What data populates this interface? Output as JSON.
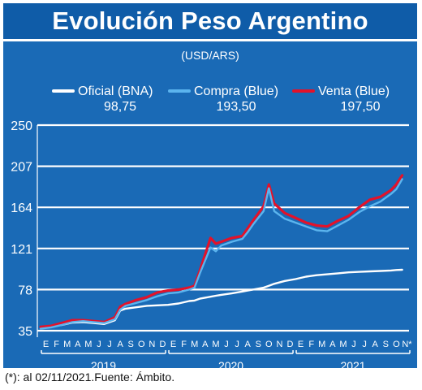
{
  "header": {
    "title": "Evolución Peso Argentino"
  },
  "footnote": "(*): al 02/11/2021.Fuente: Ámbito.",
  "colors": {
    "background": "#1a6ab6",
    "oficial": "#ffffff",
    "compra": "#5bb4ee",
    "venta": "#e3122a",
    "grid": "#ffffff",
    "text": "#ffffff"
  },
  "chart_data": {
    "type": "line",
    "title": "Evolución Peso Argentino",
    "unit_label": "(USD/ARS)",
    "ylim": [
      35,
      250
    ],
    "yticks": [
      "250",
      "207",
      "164",
      "121",
      "78",
      "35"
    ],
    "grid": true,
    "legend_position": "top",
    "legend": [
      {
        "key": "oficial",
        "name": "Oficial (BNA)",
        "value_label": "98,75"
      },
      {
        "key": "compra",
        "name": "Compra (Blue)",
        "value_label": "193,50"
      },
      {
        "key": "venta",
        "name": "Venta (Blue)",
        "value_label": "197,50"
      }
    ],
    "month_labels": [
      [
        "E",
        "F",
        "M",
        "A",
        "M",
        "J",
        "J",
        "A",
        "S",
        "O",
        "N",
        "D"
      ],
      [
        "E",
        "F",
        "M",
        "A",
        "M",
        "J",
        "J",
        "A",
        "S",
        "O",
        "N",
        "D"
      ],
      [
        "E",
        "F",
        "M",
        "A",
        "M",
        "J",
        "J",
        "A",
        "S",
        "O",
        "N*"
      ]
    ],
    "years": [
      "2019",
      "2020",
      "2021"
    ],
    "x": [
      0,
      1,
      2,
      3,
      4,
      5,
      6,
      7,
      7.5,
      8,
      9,
      10,
      11,
      12,
      13,
      14,
      14.5,
      15,
      16,
      16.5,
      17,
      18,
      19,
      19.5,
      20,
      21,
      21.5,
      22,
      23,
      24,
      25,
      26,
      27,
      28,
      29,
      30,
      31,
      32,
      33,
      33.5,
      34.05
    ],
    "series": [
      {
        "key": "oficial",
        "name": "Oficial (BNA)",
        "values": [
          38.5,
          39.5,
          41,
          43.5,
          44,
          43,
          42,
          46,
          56,
          58,
          59.5,
          61,
          61.5,
          62,
          63.5,
          66,
          66.5,
          68.5,
          70.5,
          71.5,
          72.5,
          74,
          76,
          77,
          78,
          80,
          82,
          84,
          87,
          89,
          91.5,
          93,
          94,
          95,
          96,
          96.5,
          97,
          97.5,
          98,
          98.5,
          98.75
        ]
      },
      {
        "key": "compra",
        "name": "Compra (Blue)",
        "values": [
          37,
          38.5,
          41,
          44,
          45,
          44,
          43,
          47,
          57,
          61,
          64,
          67,
          71,
          74,
          75,
          78,
          80,
          95,
          122,
          118,
          124,
          128,
          131,
          138,
          146,
          160,
          184,
          160,
          152,
          148,
          144,
          140,
          139,
          145,
          151,
          159,
          165,
          170,
          178,
          183,
          193.5
        ]
      },
      {
        "key": "venta",
        "name": "Venta (Blue)",
        "values": [
          39,
          40,
          43,
          46,
          46,
          45,
          44,
          49,
          60,
          63,
          67,
          70,
          75,
          77,
          78,
          80,
          82,
          98,
          132,
          126,
          128,
          132,
          134,
          142,
          150,
          165,
          188,
          168,
          158,
          153,
          148,
          145,
          144,
          150,
          155,
          164,
          172,
          175,
          182,
          188,
          197.5
        ]
      }
    ]
  }
}
